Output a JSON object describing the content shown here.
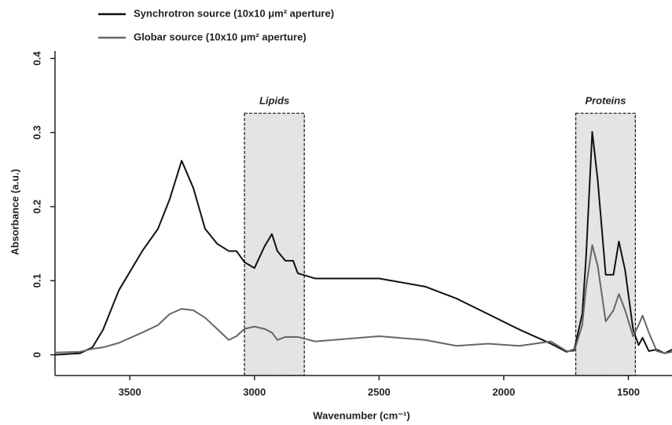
{
  "chart_data": {
    "type": "line",
    "x_label": "Wavenumber (cm⁻¹)",
    "y_label": "Absorbance  (a.u.)",
    "xlim": [
      3800,
      1325
    ],
    "ylim": [
      -0.028,
      0.41
    ],
    "xticks": [
      3500,
      3000,
      2500,
      2000,
      1500
    ],
    "yticks": [
      0,
      0.1,
      0.2,
      0.3,
      0.4
    ],
    "regions": [
      {
        "label": "Lipids",
        "range": [
          3040,
          2800
        ],
        "top": 0.326
      },
      {
        "label": "Proteins",
        "range": [
          1711,
          1472
        ],
        "top": 0.326
      }
    ],
    "x": [
      3800,
      3700,
      3650,
      3607,
      3544,
      3450,
      3387,
      3340,
      3292,
      3245,
      3198,
      3150,
      3103,
      3072,
      3040,
      3000,
      2960,
      2930,
      2908,
      2876,
      2845,
      2826,
      2757,
      2500,
      2315,
      2190,
      2063,
      1937,
      1811,
      1748,
      1717,
      1685,
      1670,
      1645,
      1623,
      1591,
      1560,
      1538,
      1513,
      1481,
      1459,
      1443,
      1418,
      1386,
      1355,
      1325
    ],
    "series": [
      {
        "name": "Synchrotron source (10x10 μm² aperture)",
        "color": "#111111",
        "values": [
          0,
          0.002,
          0.01,
          0.034,
          0.087,
          0.14,
          0.17,
          0.21,
          0.262,
          0.225,
          0.17,
          0.15,
          0.14,
          0.14,
          0.125,
          0.117,
          0.146,
          0.163,
          0.14,
          0.127,
          0.127,
          0.11,
          0.103,
          0.103,
          0.092,
          0.076,
          0.055,
          0.034,
          0.015,
          0.004,
          0.007,
          0.055,
          0.13,
          0.301,
          0.236,
          0.108,
          0.108,
          0.153,
          0.114,
          0.034,
          0.013,
          0.023,
          0.005,
          0.007,
          0.002,
          0.007
        ]
      },
      {
        "name": "Globar source (10x10 μm² aperture)",
        "color": "#666666",
        "values": [
          0.003,
          0.004,
          0.008,
          0.01,
          0.016,
          0.03,
          0.04,
          0.055,
          0.062,
          0.06,
          0.05,
          0.035,
          0.02,
          0.025,
          0.035,
          0.038,
          0.035,
          0.03,
          0.02,
          0.024,
          0.024,
          0.024,
          0.018,
          0.025,
          0.02,
          0.012,
          0.015,
          0.012,
          0.018,
          0.005,
          0.005,
          0.04,
          0.09,
          0.148,
          0.12,
          0.045,
          0.06,
          0.082,
          0.06,
          0.025,
          0.04,
          0.053,
          0.03,
          0.005,
          0.002,
          0.004
        ]
      }
    ]
  }
}
